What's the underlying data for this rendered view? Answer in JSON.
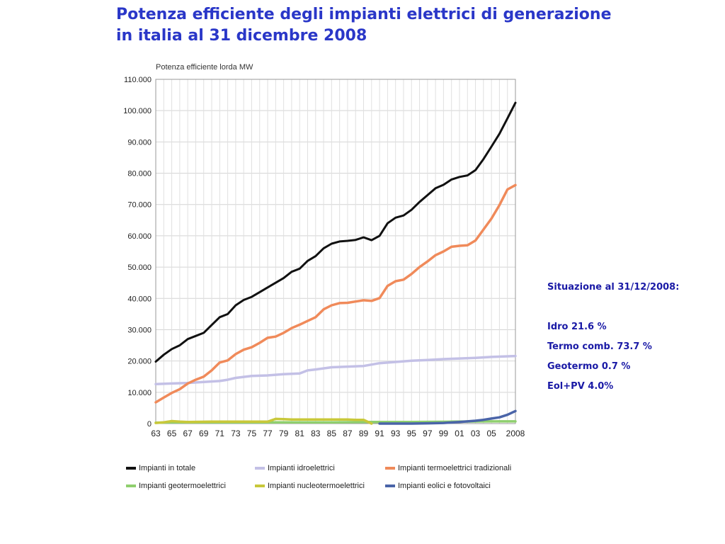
{
  "title": {
    "line1": "Potenza efficiente degli impianti elettrici di generazione",
    "line2": "in italia al 31 dicembre 2008"
  },
  "info": {
    "heading": "Situazione al 31/12/2008:",
    "lines": [
      "Idro 21.6 %",
      "Termo comb. 73.7 %",
      "Geotermo 0.7 %",
      "Eol+PV 4.0%"
    ]
  },
  "chart_data": {
    "type": "line",
    "ylabel": "Potenza efficiente lorda MW",
    "ylim": [
      0,
      110000
    ],
    "yticks": [
      0,
      10000,
      20000,
      30000,
      40000,
      50000,
      60000,
      70000,
      80000,
      90000,
      100000,
      110000
    ],
    "ytick_labels": [
      "0",
      "10.000",
      "20.000",
      "30.000",
      "40.000",
      "50.000",
      "60.000",
      "70.000",
      "80.000",
      "90.000",
      "100.000",
      "110.000"
    ],
    "xlim": [
      1963,
      2008
    ],
    "xtick_labels": [
      "63",
      "65",
      "67",
      "69",
      "71",
      "73",
      "75",
      "77",
      "79",
      "81",
      "83",
      "85",
      "87",
      "89",
      "91",
      "93",
      "95",
      "97",
      "99",
      "01",
      "03",
      "05",
      "2008"
    ],
    "grid": true,
    "legend_position": "bottom",
    "series": [
      {
        "name": "Impianti in totale",
        "color": "#111111",
        "x": [
          1963,
          1964,
          1965,
          1966,
          1967,
          1968,
          1969,
          1970,
          1971,
          1972,
          1973,
          1974,
          1975,
          1976,
          1977,
          1978,
          1979,
          1980,
          1981,
          1982,
          1983,
          1984,
          1985,
          1986,
          1987,
          1988,
          1989,
          1990,
          1991,
          1992,
          1993,
          1994,
          1995,
          1996,
          1997,
          1998,
          1999,
          2000,
          2001,
          2002,
          2003,
          2004,
          2005,
          2006,
          2007,
          2008
        ],
        "values": [
          19800,
          22000,
          23800,
          25000,
          27000,
          28000,
          29000,
          31500,
          34000,
          35000,
          37800,
          39500,
          40500,
          42000,
          43500,
          45000,
          46500,
          48500,
          49500,
          52000,
          53500,
          56000,
          57500,
          58200,
          58400,
          58700,
          59500,
          58600,
          60000,
          64000,
          65800,
          66500,
          68300,
          70800,
          73000,
          75200,
          76300,
          78000,
          78800,
          79300,
          81000,
          84500,
          88500,
          92600,
          97500,
          102500
        ]
      },
      {
        "name": "Impianti idroelettrici",
        "color": "#c3c0e6",
        "x": [
          1963,
          1965,
          1967,
          1969,
          1971,
          1972,
          1973,
          1975,
          1977,
          1979,
          1981,
          1982,
          1983,
          1985,
          1987,
          1989,
          1991,
          1993,
          1995,
          1997,
          1999,
          2001,
          2003,
          2005,
          2008
        ],
        "values": [
          12600,
          12800,
          13000,
          13300,
          13600,
          14000,
          14600,
          15200,
          15400,
          15800,
          16000,
          17000,
          17300,
          18000,
          18200,
          18400,
          19300,
          19700,
          20100,
          20300,
          20600,
          20800,
          21000,
          21300,
          21600
        ]
      },
      {
        "name": "Impianti termoelettrici tradizionali",
        "color": "#f08a5a",
        "x": [
          1963,
          1964,
          1965,
          1966,
          1967,
          1968,
          1969,
          1970,
          1971,
          1972,
          1973,
          1974,
          1975,
          1976,
          1977,
          1978,
          1979,
          1980,
          1981,
          1982,
          1983,
          1984,
          1985,
          1986,
          1987,
          1988,
          1989,
          1990,
          1991,
          1992,
          1993,
          1994,
          1995,
          1996,
          1997,
          1998,
          1999,
          2000,
          2001,
          2002,
          2003,
          2004,
          2005,
          2006,
          2007,
          2008
        ],
        "values": [
          6800,
          8300,
          9800,
          11000,
          12800,
          14000,
          15000,
          17000,
          19500,
          20200,
          22200,
          23600,
          24400,
          25800,
          27400,
          27800,
          29000,
          30500,
          31600,
          32800,
          34000,
          36500,
          37800,
          38500,
          38600,
          39000,
          39400,
          39200,
          40100,
          44000,
          45500,
          46000,
          47800,
          50000,
          51800,
          53800,
          55000,
          56500,
          56800,
          57000,
          58500,
          62000,
          65500,
          69800,
          74800,
          76200
        ]
      },
      {
        "name": "Impianti geotermoelettrici",
        "color": "#8fcf6e",
        "x": [
          1963,
          1965,
          1967,
          1970,
          1975,
          1980,
          1985,
          1990,
          1995,
          2000,
          2005,
          2008
        ],
        "values": [
          300,
          400,
          400,
          400,
          400,
          400,
          400,
          500,
          500,
          600,
          700,
          700
        ]
      },
      {
        "name": "Impianti nucleotermoelettrici",
        "color": "#c8c83a",
        "x": [
          1963,
          1964,
          1965,
          1966,
          1967,
          1970,
          1975,
          1977,
          1978,
          1979,
          1980,
          1982,
          1985,
          1987,
          1988,
          1989,
          1990
        ],
        "values": [
          200,
          400,
          800,
          600,
          500,
          600,
          600,
          600,
          1500,
          1400,
          1300,
          1300,
          1300,
          1300,
          1200,
          1200,
          0
        ]
      },
      {
        "name": "Impianti eolici e fotovoltaici",
        "color": "#4a64a8",
        "x": [
          1991,
          1993,
          1995,
          1997,
          1999,
          2001,
          2002,
          2003,
          2004,
          2005,
          2006,
          2007,
          2008
        ],
        "values": [
          0,
          0,
          0,
          100,
          200,
          500,
          700,
          900,
          1200,
          1600,
          2000,
          2800,
          4000
        ]
      }
    ]
  }
}
